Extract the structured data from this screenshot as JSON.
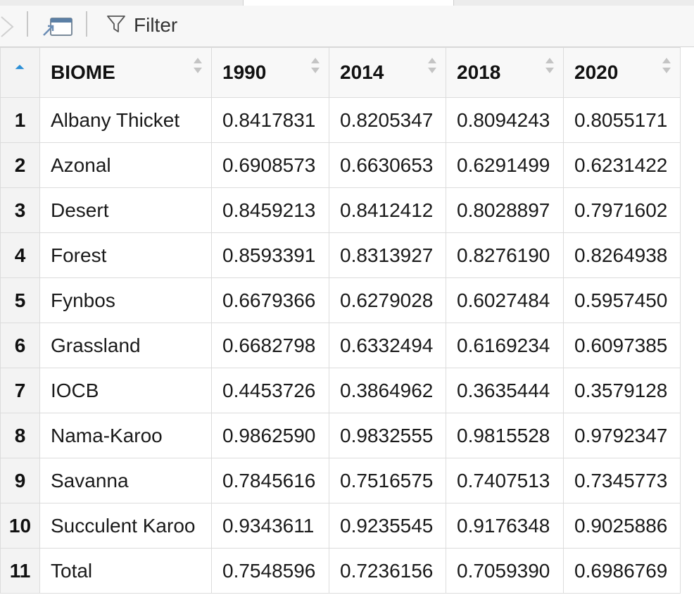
{
  "toolbar": {
    "filter_label": "Filter",
    "back_icon": "chevron-right-icon",
    "popout_icon": "popout-window-icon",
    "filter_icon": "funnel-icon"
  },
  "columns": [
    "BIOME",
    "1990",
    "2014",
    "2018",
    "2020"
  ],
  "rows": [
    {
      "index": "1",
      "cells": [
        "Albany Thicket",
        "0.8417831",
        "0.8205347",
        "0.8094243",
        "0.8055171"
      ]
    },
    {
      "index": "2",
      "cells": [
        "Azonal",
        "0.6908573",
        "0.6630653",
        "0.6291499",
        "0.6231422"
      ]
    },
    {
      "index": "3",
      "cells": [
        "Desert",
        "0.8459213",
        "0.8412412",
        "0.8028897",
        "0.7971602"
      ]
    },
    {
      "index": "4",
      "cells": [
        "Forest",
        "0.8593391",
        "0.8313927",
        "0.8276190",
        "0.8264938"
      ]
    },
    {
      "index": "5",
      "cells": [
        "Fynbos",
        "0.6679366",
        "0.6279028",
        "0.6027484",
        "0.5957450"
      ]
    },
    {
      "index": "6",
      "cells": [
        "Grassland",
        "0.6682798",
        "0.6332494",
        "0.6169234",
        "0.6097385"
      ]
    },
    {
      "index": "7",
      "cells": [
        "IOCB",
        "0.4453726",
        "0.3864962",
        "0.3635444",
        "0.3579128"
      ]
    },
    {
      "index": "8",
      "cells": [
        "Nama-Karoo",
        "0.9862590",
        "0.9832555",
        "0.9815528",
        "0.9792347"
      ]
    },
    {
      "index": "9",
      "cells": [
        "Savanna",
        "0.7845616",
        "0.7516575",
        "0.7407513",
        "0.7345773"
      ]
    },
    {
      "index": "10",
      "cells": [
        "Succulent Karoo",
        "0.9343611",
        "0.9235545",
        "0.9176348",
        "0.9025886"
      ]
    },
    {
      "index": "11",
      "cells": [
        "Total",
        "0.7548596",
        "0.7236156",
        "0.7059390",
        "0.6986769"
      ]
    }
  ],
  "colors": {
    "sort_active": "#2b8fd6",
    "sort_inactive": "#c4c4c4",
    "grid_border": "#dcdcdc"
  }
}
